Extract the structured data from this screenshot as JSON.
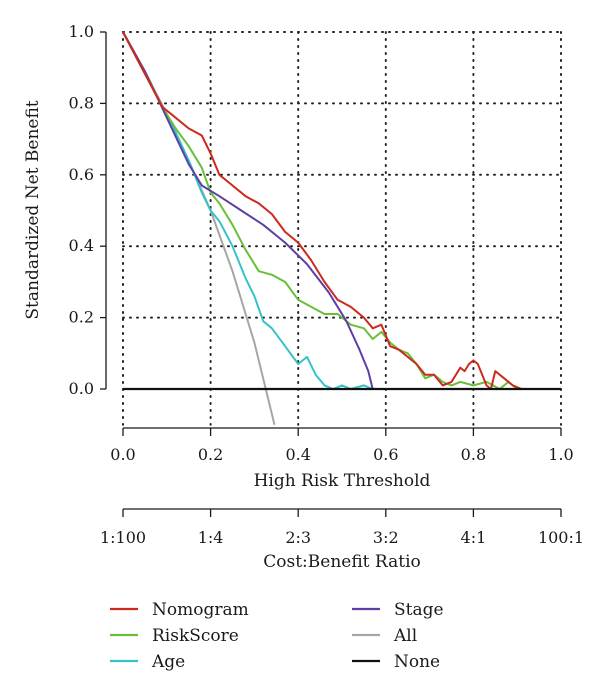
{
  "chart_data": {
    "type": "line",
    "title": "",
    "xlabel": "High Risk Threshold",
    "ylabel": "Standardized Net Benefit",
    "xlim": [
      0,
      1
    ],
    "ylim": [
      -0.1,
      1
    ],
    "grid": true,
    "grid_style": "dotted",
    "x_ticks": [
      0.0,
      0.2,
      0.4,
      0.6,
      0.8,
      1.0
    ],
    "x_tick_labels": [
      "0.0",
      "0.2",
      "0.4",
      "0.6",
      "0.8",
      "1.0"
    ],
    "y_ticks": [
      0.0,
      0.2,
      0.4,
      0.6,
      0.8,
      1.0
    ],
    "y_tick_labels": [
      "0.0",
      "0.2",
      "0.4",
      "0.6",
      "0.8",
      "1.0"
    ],
    "secondary_axis": {
      "label": "Cost:Benefit Ratio",
      "tick_positions": [
        0.0,
        0.2,
        0.4,
        0.6,
        0.8,
        1.0
      ],
      "tick_labels": [
        "1:100",
        "1:4",
        "2:3",
        "3:2",
        "4:1",
        "100:1"
      ]
    },
    "legend_position": "bottom",
    "series": [
      {
        "name": "Nomogram",
        "color": "#cc2a1c",
        "x": [
          0,
          0.03,
          0.06,
          0.09,
          0.12,
          0.15,
          0.18,
          0.2,
          0.22,
          0.25,
          0.28,
          0.31,
          0.34,
          0.37,
          0.4,
          0.43,
          0.46,
          0.49,
          0.52,
          0.55,
          0.57,
          0.59,
          0.61,
          0.63,
          0.65,
          0.67,
          0.69,
          0.71,
          0.73,
          0.75,
          0.77,
          0.78,
          0.79,
          0.8,
          0.81,
          0.82,
          0.83,
          0.84,
          0.85,
          0.87,
          0.89,
          0.91,
          1.0
        ],
        "y": [
          1.0,
          0.93,
          0.86,
          0.79,
          0.76,
          0.73,
          0.71,
          0.66,
          0.6,
          0.57,
          0.54,
          0.52,
          0.49,
          0.44,
          0.41,
          0.36,
          0.3,
          0.25,
          0.23,
          0.2,
          0.17,
          0.18,
          0.12,
          0.11,
          0.09,
          0.07,
          0.04,
          0.04,
          0.01,
          0.02,
          0.06,
          0.05,
          0.07,
          0.08,
          0.07,
          0.04,
          0.01,
          0.0,
          0.05,
          0.03,
          0.01,
          0.0,
          0.0
        ]
      },
      {
        "name": "RiskScore",
        "color": "#6abf3a",
        "x": [
          0,
          0.03,
          0.06,
          0.09,
          0.12,
          0.15,
          0.18,
          0.2,
          0.22,
          0.25,
          0.28,
          0.31,
          0.34,
          0.37,
          0.4,
          0.43,
          0.46,
          0.49,
          0.52,
          0.55,
          0.57,
          0.59,
          0.61,
          0.63,
          0.65,
          0.67,
          0.69,
          0.71,
          0.73,
          0.75,
          0.77,
          0.8,
          0.83,
          0.86,
          0.88,
          0.9,
          1.0
        ],
        "y": [
          1.0,
          0.93,
          0.86,
          0.79,
          0.73,
          0.68,
          0.62,
          0.55,
          0.52,
          0.46,
          0.39,
          0.33,
          0.32,
          0.3,
          0.25,
          0.23,
          0.21,
          0.21,
          0.18,
          0.17,
          0.14,
          0.16,
          0.13,
          0.11,
          0.1,
          0.07,
          0.03,
          0.04,
          0.02,
          0.01,
          0.02,
          0.01,
          0.02,
          0.0,
          0.02,
          0.0,
          0.0
        ]
      },
      {
        "name": "Age",
        "color": "#33c3c9",
        "x": [
          0,
          0.03,
          0.06,
          0.09,
          0.12,
          0.15,
          0.18,
          0.2,
          0.22,
          0.25,
          0.28,
          0.3,
          0.32,
          0.34,
          0.37,
          0.4,
          0.42,
          0.44,
          0.46,
          0.48,
          0.5,
          0.52,
          0.55,
          0.57,
          0.6,
          1.0
        ],
        "y": [
          1.0,
          0.93,
          0.86,
          0.79,
          0.72,
          0.64,
          0.55,
          0.5,
          0.47,
          0.4,
          0.31,
          0.26,
          0.19,
          0.17,
          0.12,
          0.07,
          0.09,
          0.04,
          0.01,
          0.0,
          0.01,
          0.0,
          0.01,
          0.0,
          0.0,
          0.0
        ]
      },
      {
        "name": "Stage",
        "color": "#5e3fa6",
        "x": [
          0,
          0.05,
          0.1,
          0.15,
          0.18,
          0.22,
          0.27,
          0.32,
          0.37,
          0.42,
          0.47,
          0.51,
          0.54,
          0.56,
          0.57,
          0.6,
          0.8,
          1.0
        ],
        "y": [
          1.0,
          0.89,
          0.76,
          0.63,
          0.57,
          0.54,
          0.5,
          0.46,
          0.41,
          0.35,
          0.27,
          0.19,
          0.11,
          0.05,
          0.0,
          0.0,
          0.0,
          0.0
        ]
      },
      {
        "name": "All",
        "color": "#a6a6a6",
        "x": [
          0,
          0.05,
          0.1,
          0.15,
          0.2,
          0.25,
          0.3,
          0.346
        ],
        "y": [
          1.0,
          0.89,
          0.77,
          0.64,
          0.5,
          0.33,
          0.13,
          -0.1
        ]
      },
      {
        "name": "None",
        "color": "#111111",
        "x": [
          0,
          1.0
        ],
        "y": [
          0,
          0
        ]
      }
    ]
  }
}
